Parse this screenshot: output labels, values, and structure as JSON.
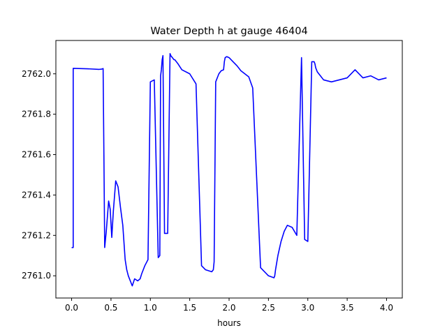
{
  "chart_data": {
    "type": "line",
    "title": "Water Depth h at gauge 46404",
    "xlabel": "hours",
    "ylabel": "",
    "xlim": [
      -0.2,
      4.2
    ],
    "ylim": [
      2760.89,
      2762.165
    ],
    "xticks": [
      0.0,
      0.5,
      1.0,
      1.5,
      2.0,
      2.5,
      3.0,
      3.5,
      4.0
    ],
    "xtick_labels": [
      "0.0",
      "0.5",
      "1.0",
      "1.5",
      "2.0",
      "2.5",
      "3.0",
      "3.5",
      "4.0"
    ],
    "yticks": [
      2761.0,
      2761.2,
      2761.4,
      2761.6,
      2761.8,
      2762.0
    ],
    "ytick_labels": [
      "2761.0",
      "2761.2",
      "2761.4",
      "2761.6",
      "2761.8",
      "2762.0"
    ],
    "grid": false,
    "series": [
      {
        "color": "#0000ff",
        "x": [
          0.0,
          0.02,
          0.02,
          0.2,
          0.35,
          0.38,
          0.4,
          0.41,
          0.42,
          0.44,
          0.47,
          0.49,
          0.51,
          0.53,
          0.56,
          0.59,
          0.62,
          0.65,
          0.68,
          0.7,
          0.72,
          0.74,
          0.77,
          0.8,
          0.84,
          0.87,
          0.89,
          0.93,
          0.97,
          1.0,
          1.05,
          1.1,
          1.12,
          1.13,
          1.14,
          1.15,
          1.16,
          1.18,
          1.22,
          1.25,
          1.26,
          1.3,
          1.31,
          1.35,
          1.4,
          1.5,
          1.58,
          1.65,
          1.7,
          1.78,
          1.8,
          1.81,
          1.83,
          1.87,
          1.9,
          1.93,
          1.94,
          1.95,
          1.97,
          2.0,
          2.05,
          2.1,
          2.15,
          2.2,
          2.25,
          2.3,
          2.4,
          2.5,
          2.57,
          2.58,
          2.59,
          2.62,
          2.66,
          2.7,
          2.74,
          2.8,
          2.86,
          2.92,
          2.96,
          3.0,
          3.05,
          3.08,
          3.09,
          3.1,
          3.12,
          3.15,
          3.16,
          3.2,
          3.3,
          3.4,
          3.5,
          3.6,
          3.7,
          3.8,
          3.9,
          4.0
        ],
        "y": [
          2761.14,
          2761.14,
          2762.027,
          2762.025,
          2762.022,
          2762.023,
          2762.026,
          2761.6,
          2761.14,
          2761.22,
          2761.37,
          2761.33,
          2761.19,
          2761.32,
          2761.47,
          2761.44,
          2761.34,
          2761.25,
          2761.08,
          2761.03,
          2761.0,
          2760.98,
          2760.95,
          2760.985,
          2760.975,
          2760.985,
          2761.01,
          2761.05,
          2761.08,
          2761.96,
          2761.97,
          2761.09,
          2761.1,
          2761.99,
          2762.02,
          2762.07,
          2762.09,
          2761.21,
          2761.21,
          2762.1,
          2762.09,
          2762.07,
          2762.07,
          2762.05,
          2762.02,
          2762.0,
          2761.95,
          2761.05,
          2761.03,
          2761.02,
          2761.03,
          2761.07,
          2761.96,
          2762.0,
          2762.015,
          2762.02,
          2762.06,
          2762.08,
          2762.085,
          2762.08,
          2762.06,
          2762.04,
          2762.015,
          2762.0,
          2761.985,
          2761.93,
          2761.04,
          2761.0,
          2760.99,
          2761.0,
          2761.03,
          2761.1,
          2761.17,
          2761.22,
          2761.25,
          2761.24,
          2761.2,
          2762.08,
          2761.18,
          2761.17,
          2762.06,
          2762.06,
          2762.05,
          2762.03,
          2762.01,
          2761.995,
          2761.99,
          2761.97,
          2761.96,
          2761.97,
          2761.98,
          2762.02,
          2761.98,
          2761.99,
          2761.97,
          2761.98
        ]
      }
    ]
  }
}
